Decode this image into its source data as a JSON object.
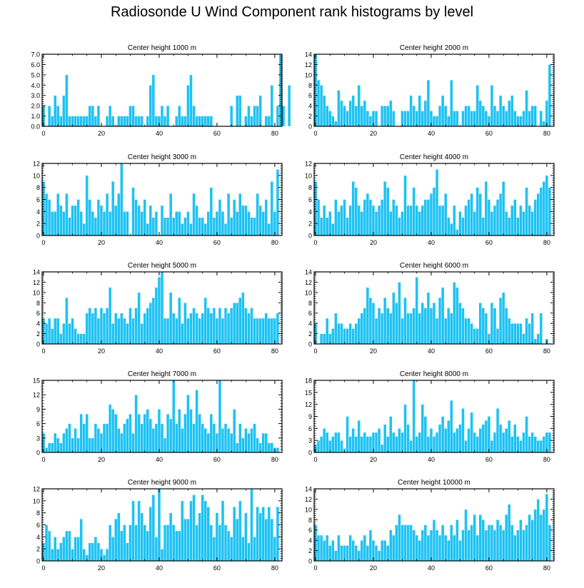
{
  "title": "Radiosonde U Wind Component rank histograms by level",
  "colors": {
    "bar": "#1ec2f2",
    "bar_edge": "#ffffff",
    "axis": "#000000"
  },
  "chart_data": [
    {
      "type": "bar",
      "title": "Center height 1000 m",
      "x_ticks": [
        0,
        20,
        40,
        60,
        80
      ],
      "xlim": [
        -0.5,
        82.5
      ],
      "ylim": [
        0,
        7.0
      ],
      "y_ticks": [
        0,
        1,
        2,
        3,
        4,
        5,
        6,
        7
      ],
      "y_tick_labels": [
        "0.0",
        "1.0",
        "2.0",
        "3.0",
        "4.0",
        "5.0",
        "6.0",
        "7.0"
      ],
      "values": [
        2,
        0,
        2,
        1,
        3,
        2,
        1,
        3,
        5,
        1,
        1,
        1,
        1,
        1,
        1,
        1,
        2,
        2,
        1,
        2,
        0,
        0,
        1,
        2,
        1,
        0,
        1,
        1,
        1,
        1,
        2,
        2,
        1,
        1,
        1,
        0,
        1,
        4,
        5,
        1,
        1,
        2,
        1,
        2,
        0,
        0,
        1,
        2,
        1,
        1,
        4,
        5,
        2,
        1,
        1,
        1,
        1,
        1,
        1,
        0,
        0,
        0,
        0,
        0,
        0,
        2,
        0,
        3,
        3,
        0,
        1,
        2,
        1,
        2,
        2,
        3,
        0,
        1,
        1,
        4,
        0,
        2,
        7,
        2,
        0,
        4
      ]
    },
    {
      "type": "bar",
      "title": "Center height 2000 m",
      "x_ticks": [
        0,
        20,
        40,
        60,
        80
      ],
      "xlim": [
        -0.5,
        82.5
      ],
      "ylim": [
        0,
        14
      ],
      "y_ticks": [
        0,
        2,
        4,
        6,
        8,
        10,
        12,
        14
      ],
      "y_tick_labels": [
        "0",
        "2",
        "4",
        "6",
        "8",
        "10",
        "12",
        "14"
      ],
      "values": [
        14,
        9,
        8,
        6,
        4,
        3,
        2,
        1,
        7,
        5,
        4,
        3,
        5,
        6,
        4,
        8,
        4,
        5,
        3,
        2,
        3,
        3,
        0,
        4,
        4,
        4,
        5,
        3,
        0,
        0,
        3,
        3,
        3,
        6,
        4,
        3,
        6,
        3,
        5,
        9,
        3,
        2,
        2,
        4,
        6,
        4,
        2,
        9,
        3,
        3,
        0,
        3,
        4,
        4,
        3,
        3,
        8,
        5,
        4,
        3,
        2,
        8,
        4,
        3,
        6,
        4,
        3,
        5,
        6,
        3,
        2,
        2,
        3,
        7,
        3,
        4,
        4,
        0,
        3,
        1,
        5,
        12
      ]
    },
    {
      "type": "bar",
      "title": "Center height 3000 m",
      "x_ticks": [
        0,
        20,
        40,
        60,
        80
      ],
      "xlim": [
        -0.5,
        82.5
      ],
      "ylim": [
        0,
        12
      ],
      "y_ticks": [
        0,
        2,
        4,
        6,
        8,
        10,
        12
      ],
      "y_tick_labels": [
        "0",
        "2",
        "4",
        "6",
        "8",
        "10",
        "12"
      ],
      "values": [
        9,
        7,
        6,
        4,
        4,
        7,
        5,
        4,
        7,
        3,
        5,
        5,
        6,
        4,
        2,
        10,
        6,
        4,
        3,
        6,
        5,
        4,
        7,
        4,
        9,
        5,
        7,
        12,
        4,
        4,
        0,
        8,
        6,
        5,
        4,
        6,
        2,
        5,
        3,
        4,
        0,
        5,
        3,
        3,
        7,
        3,
        4,
        4,
        2,
        3,
        4,
        2,
        7,
        5,
        3,
        3,
        2,
        4,
        8,
        3,
        4,
        6,
        4,
        2,
        7,
        3,
        6,
        4,
        7,
        5,
        5,
        4,
        3,
        3,
        7,
        5,
        4,
        6,
        2,
        9,
        4,
        11
      ]
    },
    {
      "type": "bar",
      "title": "Center height 4000 m",
      "x_ticks": [
        0,
        20,
        40,
        60,
        80
      ],
      "xlim": [
        -0.5,
        82.5
      ],
      "ylim": [
        0,
        12
      ],
      "y_ticks": [
        0,
        2,
        4,
        6,
        8,
        10,
        12
      ],
      "y_tick_labels": [
        "0",
        "2",
        "4",
        "6",
        "8",
        "10",
        "12"
      ],
      "values": [
        9,
        6,
        3,
        5,
        3,
        4,
        2,
        6,
        4,
        5,
        6,
        3,
        5,
        9,
        8,
        5,
        4,
        6,
        7,
        6,
        5,
        4,
        5,
        6,
        9,
        8,
        4,
        6,
        5,
        3,
        4,
        10,
        5,
        5,
        8,
        5,
        4,
        5,
        6,
        6,
        7,
        8,
        11,
        5,
        5,
        7,
        3,
        2,
        5,
        1,
        4,
        3,
        5,
        6,
        7,
        4,
        8,
        7,
        3,
        9,
        6,
        4,
        5,
        6,
        7,
        9,
        4,
        3,
        5,
        6,
        3,
        5,
        4,
        8,
        5,
        4,
        6,
        7,
        8,
        9,
        10,
        8
      ]
    },
    {
      "type": "bar",
      "title": "Center height 5000 m",
      "x_ticks": [
        0,
        20,
        40,
        60,
        80
      ],
      "xlim": [
        -0.5,
        82.5
      ],
      "ylim": [
        0,
        14
      ],
      "y_ticks": [
        0,
        2,
        4,
        6,
        8,
        10,
        12,
        14
      ],
      "y_tick_labels": [
        "0",
        "2",
        "4",
        "6",
        "8",
        "10",
        "12",
        "14"
      ],
      "values": [
        5,
        4,
        5,
        3,
        5,
        5,
        2,
        4,
        9,
        4,
        5,
        3,
        2,
        2,
        2,
        6,
        7,
        6,
        7,
        5,
        7,
        6,
        7,
        11,
        4,
        6,
        5,
        6,
        5,
        4,
        7,
        5,
        7,
        10,
        4,
        6,
        7,
        8,
        9,
        11,
        13,
        14,
        5,
        5,
        10,
        6,
        5,
        9,
        4,
        8,
        5,
        6,
        7,
        6,
        5,
        6,
        9,
        7,
        6,
        7,
        5,
        7,
        5,
        7,
        6,
        7,
        8,
        8,
        9,
        10,
        7,
        6,
        7,
        5,
        5,
        5,
        5,
        6,
        5,
        5,
        5,
        6
      ]
    },
    {
      "type": "bar",
      "title": "Center height 6000 m",
      "x_ticks": [
        0,
        20,
        40,
        60,
        80
      ],
      "xlim": [
        -0.5,
        82.5
      ],
      "ylim": [
        0,
        14
      ],
      "y_ticks": [
        0,
        2,
        4,
        6,
        8,
        10,
        12,
        14
      ],
      "y_tick_labels": [
        "0",
        "2",
        "4",
        "6",
        "8",
        "10",
        "12",
        "14"
      ],
      "values": [
        4,
        0,
        2,
        2,
        5,
        2,
        3,
        6,
        4,
        4,
        3,
        3,
        4,
        3,
        4,
        5,
        6,
        7,
        11,
        9,
        8,
        5,
        7,
        6,
        9,
        7,
        6,
        10,
        8,
        12,
        5,
        9,
        6,
        6,
        7,
        13,
        6,
        8,
        7,
        10,
        7,
        8,
        5,
        9,
        11,
        5,
        7,
        6,
        12,
        11,
        8,
        7,
        5,
        5,
        4,
        3,
        3,
        8,
        7,
        6,
        2,
        8,
        7,
        3,
        9,
        10,
        7,
        5,
        4,
        4,
        4,
        4,
        2,
        5,
        4,
        6,
        1,
        2,
        6,
        0,
        1,
        0
      ]
    },
    {
      "type": "bar",
      "title": "Center height 7000 m",
      "x_ticks": [
        0,
        20,
        40,
        60,
        80
      ],
      "xlim": [
        -0.5,
        82.5
      ],
      "ylim": [
        0,
        15
      ],
      "y_ticks": [
        0,
        3,
        6,
        9,
        12,
        15
      ],
      "y_tick_labels": [
        "0",
        "3",
        "6",
        "9",
        "12",
        "15"
      ],
      "values": [
        4,
        1,
        2,
        2,
        4,
        3,
        2,
        4,
        5,
        6,
        3,
        5,
        3,
        8,
        6,
        8,
        3,
        3,
        6,
        5,
        4,
        6,
        6,
        10,
        9,
        8,
        5,
        4,
        6,
        7,
        8,
        4,
        12,
        8,
        6,
        8,
        9,
        7,
        5,
        6,
        9,
        6,
        3,
        8,
        7,
        15,
        6,
        9,
        5,
        8,
        12,
        9,
        6,
        13,
        8,
        6,
        5,
        4,
        8,
        6,
        4,
        15,
        5,
        6,
        5,
        4,
        9,
        2,
        6,
        3,
        5,
        4,
        5,
        6,
        3,
        2,
        4,
        4,
        2,
        2,
        1,
        1
      ]
    },
    {
      "type": "bar",
      "title": "Center height 8000 m",
      "x_ticks": [
        0,
        20,
        40,
        60,
        80
      ],
      "xlim": [
        -0.5,
        82.5
      ],
      "ylim": [
        0,
        18
      ],
      "y_ticks": [
        0,
        3,
        6,
        9,
        12,
        15,
        18
      ],
      "y_tick_labels": [
        "0",
        "3",
        "6",
        "9",
        "12",
        "15",
        "18"
      ],
      "values": [
        2,
        3,
        4,
        6,
        5,
        3,
        4,
        5,
        5,
        3,
        1,
        9,
        4,
        6,
        4,
        8,
        4,
        5,
        4,
        4,
        5,
        5,
        6,
        2,
        7,
        4,
        9,
        5,
        4,
        6,
        5,
        12,
        7,
        3,
        18,
        4,
        5,
        12,
        9,
        4,
        6,
        4,
        5,
        7,
        9,
        6,
        8,
        13,
        5,
        6,
        7,
        11,
        3,
        6,
        10,
        5,
        4,
        6,
        7,
        8,
        9,
        3,
        5,
        11,
        7,
        5,
        6,
        8,
        4,
        7,
        4,
        3,
        5,
        9,
        4,
        5,
        4,
        3,
        3,
        4,
        5,
        5
      ]
    },
    {
      "type": "bar",
      "title": "Center height 9000 m",
      "x_ticks": [
        0,
        20,
        40,
        60,
        80
      ],
      "xlim": [
        -0.5,
        82.5
      ],
      "ylim": [
        0,
        12
      ],
      "y_ticks": [
        0,
        2,
        4,
        6,
        8,
        10,
        12
      ],
      "y_tick_labels": [
        "0",
        "2",
        "4",
        "6",
        "8",
        "10",
        "12"
      ],
      "values": [
        3,
        6,
        5,
        2,
        4,
        2,
        3,
        4,
        5,
        5,
        2,
        4,
        4,
        7,
        2,
        1,
        3,
        3,
        4,
        3,
        2,
        1,
        2,
        6,
        4,
        7,
        8,
        5,
        6,
        3,
        6,
        10,
        6,
        10,
        8,
        6,
        5,
        9,
        11,
        4,
        12,
        2,
        6,
        6,
        8,
        6,
        5,
        5,
        10,
        7,
        7,
        10,
        11,
        6,
        8,
        11,
        10,
        9,
        6,
        4,
        8,
        6,
        10,
        6,
        5,
        4,
        9,
        7,
        10,
        4,
        8,
        3,
        12,
        4,
        9,
        8,
        9,
        7,
        9,
        7,
        4,
        9
      ]
    },
    {
      "type": "bar",
      "title": "Center height 10000 m",
      "x_ticks": [
        0,
        20,
        40,
        60,
        80
      ],
      "xlim": [
        -0.5,
        82.5
      ],
      "ylim": [
        0,
        14
      ],
      "y_ticks": [
        0,
        2,
        4,
        6,
        8,
        10,
        12,
        14
      ],
      "y_tick_labels": [
        "0",
        "2",
        "4",
        "6",
        "8",
        "10",
        "12",
        "14"
      ],
      "values": [
        7,
        5,
        5,
        4,
        5,
        3,
        4,
        2,
        5,
        3,
        3,
        3,
        5,
        4,
        3,
        2,
        4,
        5,
        3,
        6,
        4,
        3,
        2,
        4,
        4,
        3,
        6,
        5,
        7,
        9,
        7,
        7,
        7,
        7,
        6,
        5,
        4,
        6,
        7,
        5,
        6,
        8,
        6,
        5,
        7,
        5,
        4,
        7,
        5,
        8,
        4,
        6,
        10,
        6,
        7,
        9,
        5,
        9,
        8,
        6,
        7,
        7,
        6,
        8,
        7,
        6,
        9,
        11,
        7,
        5,
        6,
        8,
        6,
        7,
        9,
        8,
        10,
        12,
        9,
        10,
        13,
        7
      ]
    }
  ]
}
